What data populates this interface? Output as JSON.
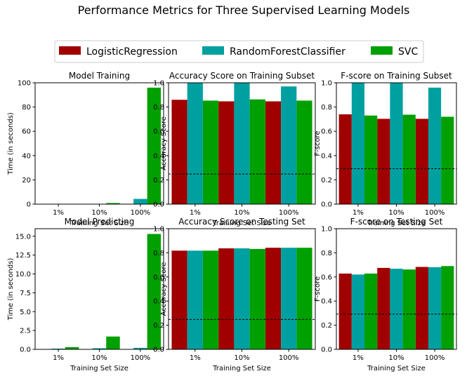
{
  "figure_title": "Performance Metrics for Three Supervised Learning Models",
  "legend": [
    {
      "label": "LogisticRegression",
      "color": "#a00000"
    },
    {
      "label": "RandomForestClassifier",
      "color": "#00a0a0"
    },
    {
      "label": "SVC",
      "color": "#00a000"
    }
  ],
  "chart_data": [
    {
      "type": "bar",
      "title": "Model Training",
      "xlabel": "Training Set Size",
      "ylabel": "Time (in seconds)",
      "categories": [
        "1%",
        "10%",
        "100%"
      ],
      "ylim": [
        0,
        100
      ],
      "yticks": [
        "0",
        "20",
        "40",
        "60",
        "80",
        "100"
      ],
      "ytick_values": [
        0,
        20,
        40,
        60,
        80,
        100
      ],
      "series": [
        {
          "name": "LogisticRegression",
          "values": [
            0.0,
            0.05,
            0.3
          ]
        },
        {
          "name": "RandomForestClassifier",
          "values": [
            0.05,
            0.1,
            4.3
          ]
        },
        {
          "name": "SVC",
          "values": [
            0.0,
            0.9,
            96.0
          ]
        }
      ]
    },
    {
      "type": "bar",
      "title": "Accuracy Score on Training Subset",
      "xlabel": "Training Set Size",
      "ylabel": "Accuracy Score",
      "categories": [
        "1%",
        "10%",
        "100%"
      ],
      "ylim": [
        0,
        1
      ],
      "yticks": [
        "0.0",
        "0.2",
        "0.4",
        "0.6",
        "0.8",
        "1.0"
      ],
      "ytick_values": [
        0,
        0.2,
        0.4,
        0.6,
        0.8,
        1.0
      ],
      "baseline": 0.248,
      "series": [
        {
          "name": "LogisticRegression",
          "values": [
            0.86,
            0.847,
            0.847
          ]
        },
        {
          "name": "RandomForestClassifier",
          "values": [
            1.0,
            1.0,
            0.97
          ]
        },
        {
          "name": "SVC",
          "values": [
            0.853,
            0.863,
            0.853
          ]
        }
      ]
    },
    {
      "type": "bar",
      "title": "F-score on Training Subset",
      "xlabel": "Training Set Size",
      "ylabel": "F-score",
      "categories": [
        "1%",
        "10%",
        "100%"
      ],
      "ylim": [
        0,
        1
      ],
      "yticks": [
        "0.0",
        "0.2",
        "0.4",
        "0.6",
        "0.8",
        "1.0"
      ],
      "ytick_values": [
        0,
        0.2,
        0.4,
        0.6,
        0.8,
        1.0
      ],
      "baseline": 0.292,
      "series": [
        {
          "name": "LogisticRegression",
          "values": [
            0.74,
            0.703,
            0.703
          ]
        },
        {
          "name": "RandomForestClassifier",
          "values": [
            1.0,
            1.0,
            0.96
          ]
        },
        {
          "name": "SVC",
          "values": [
            0.73,
            0.737,
            0.72
          ]
        }
      ]
    },
    {
      "type": "bar",
      "title": "Model Predicting",
      "xlabel": "Training Set Size",
      "ylabel": "Time (in seconds)",
      "categories": [
        "1%",
        "10%",
        "100%"
      ],
      "ylim": [
        0,
        16
      ],
      "yticks": [
        "0.0",
        "2.5",
        "5.0",
        "7.5",
        "10.0",
        "12.5",
        "15.0"
      ],
      "ytick_values": [
        0,
        2.5,
        5.0,
        7.5,
        10.0,
        12.5,
        15.0
      ],
      "series": [
        {
          "name": "LogisticRegression",
          "values": [
            0.02,
            0.02,
            0.03
          ]
        },
        {
          "name": "RandomForestClassifier",
          "values": [
            0.1,
            0.15,
            0.2
          ]
        },
        {
          "name": "SVC",
          "values": [
            0.3,
            1.7,
            15.3
          ]
        }
      ]
    },
    {
      "type": "bar",
      "title": "Accuracy Score on Testing Set",
      "xlabel": "Training Set Size",
      "ylabel": "Accuracy Score",
      "categories": [
        "1%",
        "10%",
        "100%"
      ],
      "ylim": [
        0,
        1
      ],
      "yticks": [
        "0.0",
        "0.2",
        "0.4",
        "0.6",
        "0.8",
        "1.0"
      ],
      "ytick_values": [
        0,
        0.2,
        0.4,
        0.6,
        0.8,
        1.0
      ],
      "baseline": 0.248,
      "series": [
        {
          "name": "LogisticRegression",
          "values": [
            0.818,
            0.837,
            0.842
          ]
        },
        {
          "name": "RandomForestClassifier",
          "values": [
            0.818,
            0.837,
            0.842
          ]
        },
        {
          "name": "SVC",
          "values": [
            0.818,
            0.832,
            0.842
          ]
        }
      ]
    },
    {
      "type": "bar",
      "title": "F-score on Testing Set",
      "xlabel": "Training Set Size",
      "ylabel": "F-score",
      "categories": [
        "1%",
        "10%",
        "100%"
      ],
      "ylim": [
        0,
        1
      ],
      "yticks": [
        "0.0",
        "0.2",
        "0.4",
        "0.6",
        "0.8",
        "1.0"
      ],
      "ytick_values": [
        0,
        0.2,
        0.4,
        0.6,
        0.8,
        1.0
      ],
      "baseline": 0.292,
      "series": [
        {
          "name": "LogisticRegression",
          "values": [
            0.628,
            0.675,
            0.683
          ]
        },
        {
          "name": "RandomForestClassifier",
          "values": [
            0.62,
            0.668,
            0.681
          ]
        },
        {
          "name": "SVC",
          "values": [
            0.628,
            0.662,
            0.69
          ]
        }
      ]
    }
  ]
}
